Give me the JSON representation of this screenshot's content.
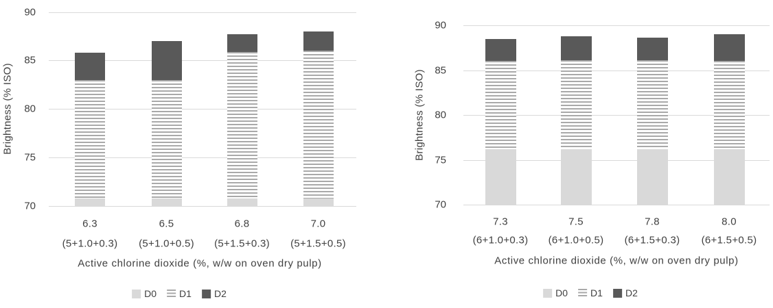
{
  "figure": {
    "background": "#ffffff",
    "colors": {
      "d0_fill": "#d9d9d9",
      "d1_stripe": "#a9a9a9",
      "d1_stripe_bg": "#ffffff",
      "d2_fill": "#595959",
      "gridline": "#d9d9d9",
      "text": "#3f3f3f"
    }
  },
  "chart_data": [
    {
      "type": "bar",
      "stacking": "stage-cumulative",
      "note": "Each bar shows ISO brightness reached after successive bleaching stages D0, D1, D2 (values are cumulative stage brightness, bars clipped at axis minimum 70)",
      "title": "",
      "xlabel": "Active chlorine dioxide (%, w/w on oven dry pulp)",
      "ylabel": "Brightness (% ISO)",
      "ylim": [
        70,
        90
      ],
      "yticks": [
        70,
        75,
        80,
        85,
        90
      ],
      "grid": true,
      "legend_position": "bottom",
      "categories": [
        "6.3",
        "6.5",
        "6.8",
        "7.0"
      ],
      "category_sublabels": [
        "(5+1.0+0.3)",
        "(5+1.0+0.5)",
        "(5+1.5+0.3)",
        "(5+1.5+0.5)"
      ],
      "series": [
        {
          "name": "D0",
          "style": "solid-light",
          "values": [
            70.8,
            70.8,
            70.8,
            70.8
          ]
        },
        {
          "name": "D1",
          "style": "striped",
          "values": [
            83.0,
            83.0,
            85.9,
            86.0
          ]
        },
        {
          "name": "D2",
          "style": "solid-dark",
          "values": [
            85.8,
            87.0,
            87.7,
            88.0
          ]
        }
      ]
    },
    {
      "type": "bar",
      "stacking": "stage-cumulative",
      "note": "Each bar shows ISO brightness reached after successive bleaching stages D0, D1, D2 (values are cumulative stage brightness, bars clipped at axis minimum 70)",
      "title": "",
      "xlabel": "Active chlorine dioxide (%, w/w on oven dry pulp)",
      "ylabel": "Brightness (% ISO)",
      "ylim": [
        70,
        90
      ],
      "yticks": [
        70,
        75,
        80,
        85,
        90
      ],
      "grid": true,
      "legend_position": "bottom",
      "categories": [
        "7.3",
        "7.5",
        "7.8",
        "8.0"
      ],
      "category_sublabels": [
        "(6+1.0+0.3)",
        "(6+1.0+0.5)",
        "(6+1.5+0.3)",
        "(6+1.5+0.5)"
      ],
      "series": [
        {
          "name": "D0",
          "style": "solid-light",
          "values": [
            76.2,
            76.2,
            76.2,
            76.2
          ]
        },
        {
          "name": "D1",
          "style": "striped",
          "values": [
            86.0,
            86.1,
            86.1,
            86.0
          ]
        },
        {
          "name": "D2",
          "style": "solid-dark",
          "values": [
            88.5,
            88.8,
            88.6,
            89.0
          ]
        }
      ]
    }
  ]
}
